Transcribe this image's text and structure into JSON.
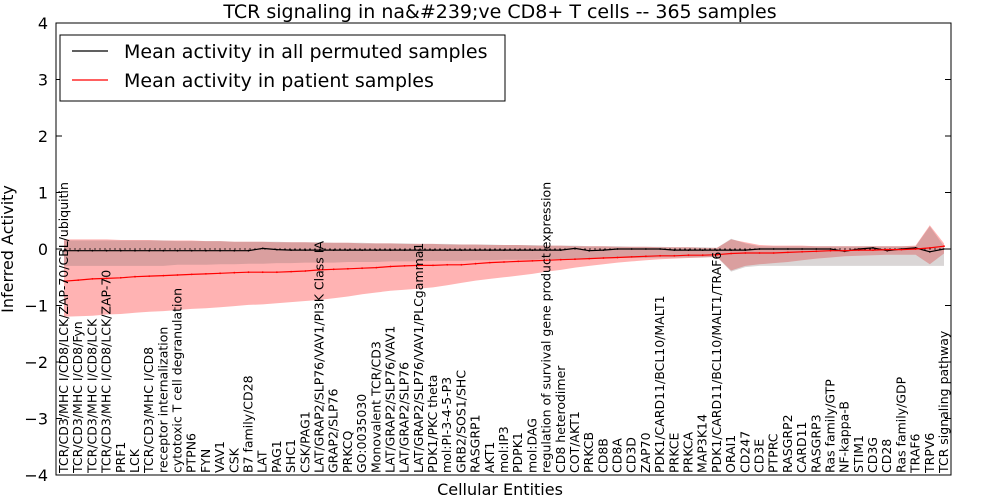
{
  "chart_data": {
    "type": "line",
    "title": "TCR signaling in na&#239;ve CD8+ T cells -- 365 samples",
    "xlabel": "Cellular Entities",
    "ylabel": "Inferred Activity",
    "ylim": [
      -4,
      4
    ],
    "yticks": [
      "4",
      "3",
      "2",
      "1",
      "0",
      "−1",
      "−2",
      "−3",
      "−4"
    ],
    "legend": {
      "position": "top-left",
      "entries": [
        {
          "label": "Mean activity in all permuted samples",
          "color": "#000000"
        },
        {
          "label": "Mean activity in patient samples",
          "color": "#ff0000"
        }
      ]
    },
    "band_color": "#ff9999",
    "categories": [
      "TCR/CD3/MHC I/CD8/LCK/ZAP-70/CBL/ubiquitin",
      "TCR/CD3/MHC I/CD8/Fyn",
      "TCR/CD3/MHC I/CD8/LCK",
      "TCR/CD3/MHC I/CD8/LCK/ZAP-70",
      "PRF1",
      "LCK",
      "TCR/CD3/MHC I/CD8",
      "receptor internalization",
      "cytotoxic T cell degranulation",
      "PTPN6",
      "FYN",
      "VAV1",
      "CSK",
      "B7 family/CD28",
      "LAT",
      "PAG1",
      "SHC1",
      "CSK/PAG1",
      "LAT/GRAP2/SLP76/VAV1/PI3K Class IA",
      "GRAP2/SLP76",
      "PRKCQ",
      "GO:0035030",
      "Monovalent TCR/CD3",
      "LAT/GRAP2/SLP76/VAV1",
      "LAT/GRAP2/SLP76",
      "LAT/GRAP2/SLP76/VAV1/PLCgamma1",
      "PDK1/PKC theta",
      "mol:PI-3-4-5-P3",
      "GRB2/SOS1/SHC",
      "RASGRP1",
      "AKT1",
      "mol:IP3",
      "PDPK1",
      "mol:DAG",
      "regulation of survival gene product expression",
      "CD8 heterodimer",
      "COT/AKT1",
      "PRKCB",
      "CD8B",
      "CD8A",
      "CD3D",
      "ZAP70",
      "PDK1/CARD11/BCL10/MALT1",
      "PRKCE",
      "PRKCA",
      "MAP3K14",
      "PDK1/CARD11/BCL10/MALT1/TRAF6",
      "ORAI1",
      "CD247",
      "CD3E",
      "PTPRC",
      "RASGRP2",
      "CARD11",
      "RASGRP3",
      "Ras family/GTP",
      "NF-kappa-B",
      "STIM1",
      "CD3G",
      "CD28",
      "Ras family/GDP",
      "TRAF6",
      "TRPV6",
      "TCR signaling pathway"
    ],
    "series": [
      {
        "name": "Mean activity in all permuted samples",
        "values": [
          -0.03,
          -0.03,
          -0.03,
          -0.03,
          -0.03,
          -0.03,
          -0.03,
          -0.03,
          -0.03,
          -0.03,
          -0.03,
          -0.03,
          -0.03,
          -0.03,
          0.01,
          -0.01,
          -0.02,
          -0.02,
          -0.02,
          -0.02,
          -0.02,
          -0.02,
          -0.02,
          -0.02,
          -0.02,
          -0.02,
          -0.02,
          -0.02,
          -0.02,
          -0.02,
          -0.02,
          -0.02,
          -0.02,
          -0.02,
          -0.02,
          -0.02,
          0.01,
          -0.03,
          -0.02,
          0.0,
          0.0,
          0.0,
          0.0,
          -0.02,
          -0.02,
          -0.02,
          -0.02,
          -0.02,
          -0.02,
          0.0,
          0.0,
          0.0,
          0.0,
          0.0,
          0.0,
          -0.04,
          0.0,
          0.02,
          -0.03,
          0.0,
          0.02,
          -0.05,
          0.0
        ],
        "ci_low": [
          -0.3,
          -0.3,
          -0.3,
          -0.3,
          -0.3,
          -0.3,
          -0.3,
          -0.3,
          -0.28,
          -0.28,
          -0.28,
          -0.27,
          -0.27,
          -0.26,
          -0.26,
          -0.25,
          -0.25,
          -0.24,
          -0.24,
          -0.24,
          -0.23,
          -0.23,
          -0.23,
          -0.22,
          -0.22,
          -0.22,
          -0.21,
          -0.21,
          -0.21,
          -0.2,
          -0.2,
          -0.19,
          -0.19,
          -0.19,
          -0.18,
          -0.18,
          -0.17,
          -0.17,
          -0.17,
          -0.16,
          -0.16,
          -0.16,
          -0.15,
          -0.15,
          -0.15,
          -0.15,
          -0.14,
          -0.4,
          -0.32,
          -0.3,
          -0.3,
          -0.3,
          -0.3,
          -0.3,
          -0.3,
          -0.3,
          -0.3,
          -0.3,
          -0.3,
          -0.3,
          -0.3,
          -0.3,
          -0.3
        ],
        "ci_high": [
          0.15,
          0.15,
          0.15,
          0.15,
          0.15,
          0.15,
          0.15,
          0.15,
          0.14,
          0.14,
          0.14,
          0.14,
          0.13,
          0.13,
          0.13,
          0.13,
          0.12,
          0.12,
          0.12,
          0.11,
          0.11,
          0.11,
          0.1,
          0.1,
          0.1,
          0.09,
          0.09,
          0.09,
          0.08,
          0.08,
          0.08,
          0.07,
          0.07,
          0.07,
          0.06,
          0.06,
          0.06,
          0.05,
          0.05,
          0.05,
          0.04,
          0.04,
          0.04,
          0.03,
          0.03,
          0.03,
          0.02,
          0.18,
          0.1,
          0.05,
          0.05,
          0.05,
          0.05,
          0.05,
          0.05,
          0.05,
          0.05,
          0.05,
          0.05,
          0.05,
          0.05,
          0.4,
          0.05
        ]
      },
      {
        "name": "Mean activity in patient samples",
        "values": [
          -0.57,
          -0.55,
          -0.53,
          -0.52,
          -0.51,
          -0.49,
          -0.48,
          -0.47,
          -0.46,
          -0.45,
          -0.44,
          -0.43,
          -0.42,
          -0.41,
          -0.41,
          -0.41,
          -0.4,
          -0.39,
          -0.37,
          -0.36,
          -0.35,
          -0.34,
          -0.33,
          -0.31,
          -0.3,
          -0.29,
          -0.29,
          -0.28,
          -0.28,
          -0.26,
          -0.24,
          -0.23,
          -0.22,
          -0.21,
          -0.2,
          -0.19,
          -0.18,
          -0.17,
          -0.16,
          -0.15,
          -0.14,
          -0.13,
          -0.12,
          -0.12,
          -0.11,
          -0.11,
          -0.1,
          -0.08,
          -0.07,
          -0.07,
          -0.07,
          -0.06,
          -0.05,
          -0.04,
          -0.03,
          -0.03,
          -0.02,
          -0.02,
          -0.01,
          -0.01,
          0.0,
          0.02,
          0.05
        ],
        "ci_low": [
          -1.2,
          -1.19,
          -1.18,
          -1.16,
          -1.15,
          -1.13,
          -1.11,
          -1.1,
          -1.08,
          -1.06,
          -1.05,
          -1.03,
          -1.01,
          -0.99,
          -0.98,
          -0.96,
          -0.94,
          -0.92,
          -0.9,
          -0.87,
          -0.84,
          -0.8,
          -0.77,
          -0.74,
          -0.72,
          -0.7,
          -0.68,
          -0.64,
          -0.6,
          -0.56,
          -0.53,
          -0.5,
          -0.47,
          -0.44,
          -0.4,
          -0.37,
          -0.33,
          -0.3,
          -0.27,
          -0.24,
          -0.22,
          -0.2,
          -0.18,
          -0.17,
          -0.16,
          -0.15,
          -0.14,
          -0.38,
          -0.3,
          -0.27,
          -0.25,
          -0.23,
          -0.2,
          -0.17,
          -0.15,
          -0.13,
          -0.12,
          -0.11,
          -0.1,
          -0.1,
          -0.1,
          -0.27,
          -0.08
        ],
        "ci_high": [
          0.17,
          0.17,
          0.17,
          0.17,
          0.16,
          0.16,
          0.16,
          0.15,
          0.15,
          0.15,
          0.14,
          0.14,
          0.13,
          0.13,
          0.13,
          0.12,
          0.12,
          0.12,
          0.11,
          0.11,
          0.11,
          0.1,
          0.1,
          0.1,
          0.09,
          0.09,
          0.09,
          0.08,
          0.08,
          0.08,
          0.07,
          0.07,
          0.07,
          0.06,
          0.06,
          0.06,
          0.05,
          0.05,
          0.05,
          0.04,
          0.04,
          0.04,
          0.03,
          0.03,
          0.03,
          0.02,
          0.02,
          0.17,
          0.12,
          0.07,
          0.06,
          0.06,
          0.06,
          0.05,
          0.05,
          0.05,
          0.05,
          0.05,
          0.05,
          0.05,
          0.06,
          0.42,
          0.1
        ]
      }
    ]
  }
}
